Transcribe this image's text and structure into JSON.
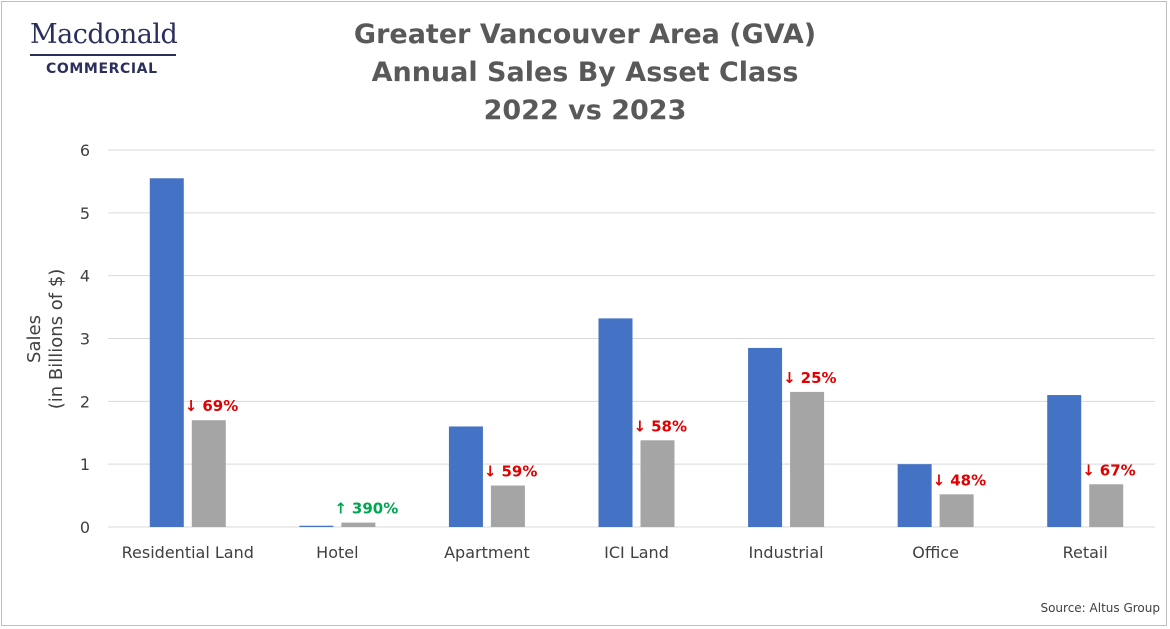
{
  "logo": {
    "name": "Macdonald",
    "sub": "COMMERCIAL"
  },
  "source": "Source: Altus Group",
  "colors": {
    "series_2022": "#4472c4",
    "series_2023": "#a5a5a5",
    "down": "#e00000",
    "up": "#00a550",
    "grid": "#d9d9d9",
    "text": "#404040"
  },
  "chart_data": {
    "type": "bar",
    "title": [
      "Greater Vancouver Area (GVA)",
      "Annual Sales By Asset Class",
      "2022 vs 2023"
    ],
    "xlabel": "",
    "ylabel": [
      "Sales",
      "(in Billions of $)"
    ],
    "ylim": [
      0,
      6
    ],
    "yticks": [
      0,
      1,
      2,
      3,
      4,
      5,
      6
    ],
    "grid": true,
    "categories": [
      "Residential Land",
      "Hotel",
      "Apartment",
      "ICI Land",
      "Industrial",
      "Office",
      "Retail"
    ],
    "series": [
      {
        "values": [
          5.55,
          0.02,
          1.6,
          3.32,
          2.85,
          1.0,
          2.1
        ]
      },
      {
        "values": [
          1.7,
          0.07,
          0.66,
          1.38,
          2.15,
          0.52,
          0.68
        ]
      }
    ],
    "annotations": [
      {
        "direction": "down",
        "arrow": "↓",
        "text": "69%"
      },
      {
        "direction": "up",
        "arrow": "↑",
        "text": "390%"
      },
      {
        "direction": "down",
        "arrow": "↓",
        "text": "59%"
      },
      {
        "direction": "down",
        "arrow": "↓",
        "text": "58%"
      },
      {
        "direction": "down",
        "arrow": "↓",
        "text": "25%"
      },
      {
        "direction": "down",
        "arrow": "↓",
        "text": "48%"
      },
      {
        "direction": "down",
        "arrow": "↓",
        "text": "67%"
      }
    ]
  }
}
